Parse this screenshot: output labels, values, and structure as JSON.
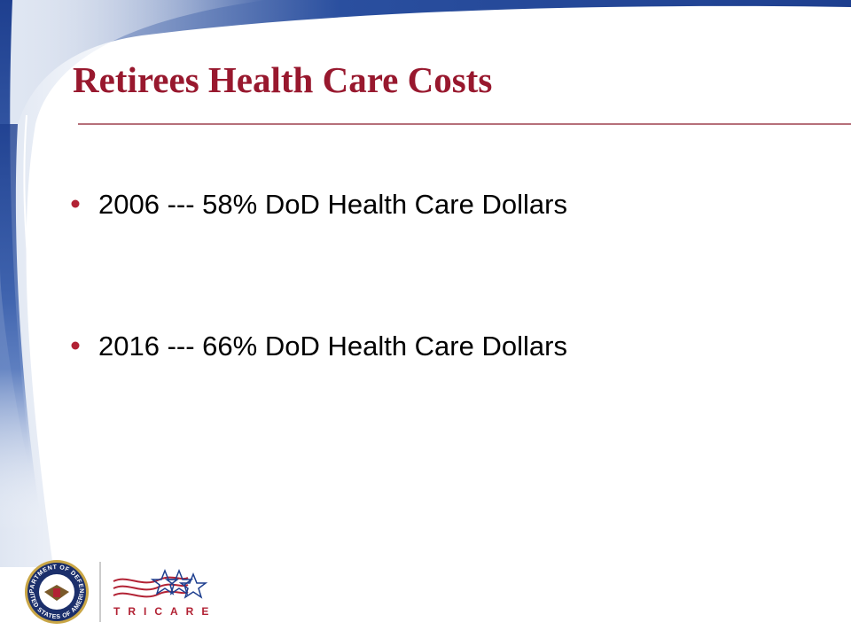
{
  "title": "Retirees Health Care Costs",
  "bullets": [
    "2006 --- 58% DoD Health Care Dollars",
    "2016 --- 66% DoD Health Care Dollars"
  ],
  "footer": {
    "seal_top": "DEPARTMENT OF DEFENSE",
    "seal_bottom": "UNITED STATES OF AMERICA",
    "logo": "TRICARE"
  }
}
